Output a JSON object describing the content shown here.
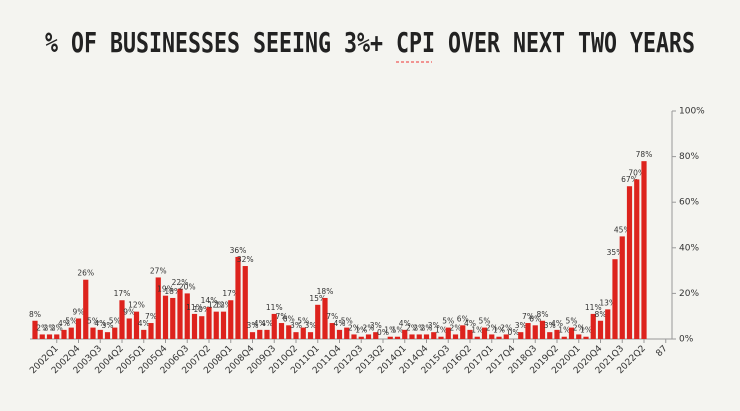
{
  "chart_data": {
    "type": "bar",
    "title": "% OF BUSINESSES SEEING 3%+ CPI OVER NEXT TWO YEARS",
    "categories": [
      null,
      null,
      null,
      "2002Q1",
      null,
      null,
      "2002Q4",
      null,
      null,
      "2003Q3",
      null,
      null,
      "2004Q2",
      null,
      null,
      "2005Q1",
      null,
      null,
      "2005Q4",
      null,
      null,
      "2006Q3",
      null,
      null,
      "2007Q2",
      null,
      null,
      "2008Q1",
      null,
      null,
      "2008Q4",
      null,
      null,
      "2009Q3",
      null,
      null,
      "2010Q2",
      null,
      null,
      "2011Q1",
      null,
      null,
      "2011Q4",
      null,
      null,
      "2012Q3",
      null,
      null,
      "2013Q2",
      null,
      null,
      "2014Q1",
      null,
      null,
      "2014Q4",
      null,
      null,
      "2015Q3",
      null,
      null,
      "2016Q2",
      null,
      null,
      "2017Q1",
      null,
      null,
      "2017Q4",
      null,
      null,
      "2018Q3",
      null,
      null,
      "2019Q2",
      null,
      null,
      "2020Q1",
      null,
      null,
      "2020Q4",
      null,
      null,
      "2021Q3",
      null,
      null,
      "2022Q2",
      null,
      null,
      "87"
    ],
    "values": [
      8,
      2,
      2,
      2,
      4,
      5,
      9,
      26,
      5,
      4,
      3,
      5,
      17,
      9,
      12,
      4,
      7,
      27,
      19,
      18,
      22,
      20,
      11,
      10,
      14,
      12,
      12,
      17,
      36,
      32,
      3,
      4,
      4,
      11,
      7,
      6,
      3,
      5,
      3,
      15,
      18,
      7,
      4,
      5,
      2,
      1,
      2,
      3,
      0,
      1,
      1,
      4,
      2,
      2,
      2,
      3,
      1,
      5,
      2,
      6,
      4,
      1,
      5,
      2,
      1,
      2,
      0,
      3,
      7,
      6,
      8,
      3,
      4,
      1,
      5,
      2,
      1,
      11,
      8,
      13,
      35,
      45,
      67,
      70,
      78,
      null,
      null,
      null
    ],
    "value_labels": [
      "8%",
      "2%",
      "2%",
      "2%",
      "4%",
      "5%",
      "9%",
      "26%",
      "5%",
      "4%",
      "3%",
      "5%",
      "17%",
      "9%",
      "12%",
      "4%",
      "7%",
      "27%",
      "19%",
      "18%",
      "22%",
      "20%",
      "11%",
      "10%",
      "14%",
      "12%",
      "12%",
      "17%",
      "36%",
      "32%",
      "3%",
      "4%",
      "4%",
      "11%",
      "7%",
      "6%",
      "3%",
      "5%",
      "3%",
      "15%",
      "18%",
      "7%",
      "4%",
      "5%",
      "2%",
      "1%",
      "2%",
      "3%",
      "0%",
      "1%",
      "1%",
      "4%",
      "2%",
      "2%",
      "2%",
      "3%",
      "1%",
      "5%",
      "2%",
      "6%",
      "4%",
      "1%",
      "5%",
      "2%",
      "1%",
      "2%",
      "0%",
      "3%",
      "7%",
      "6%",
      "8%",
      "3%",
      "4%",
      "1%",
      "5%",
      "2%",
      "1%",
      "11%",
      "8%",
      "13%",
      "35%",
      "45%",
      "67%",
      "70%",
      "78%",
      null,
      null,
      null
    ],
    "color": "#dd231d",
    "ylim": [
      0,
      100
    ],
    "yticks": [
      {
        "value": 0,
        "label": "0%"
      },
      {
        "value": 20,
        "label": "20%"
      },
      {
        "value": 40,
        "label": "40%"
      },
      {
        "value": 60,
        "label": "60%"
      },
      {
        "value": 80,
        "label": "80%"
      },
      {
        "value": 100,
        "label": "100%"
      }
    ]
  }
}
